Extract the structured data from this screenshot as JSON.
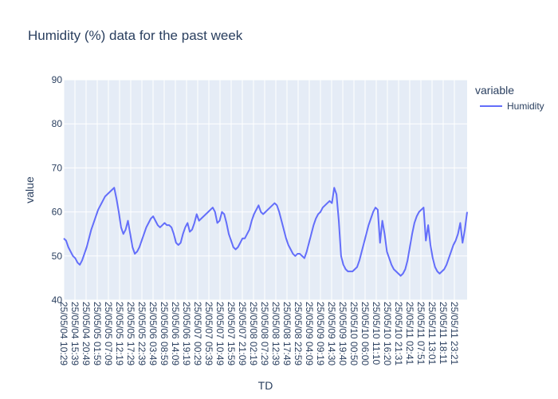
{
  "chart_data": {
    "type": "line",
    "title": "Humidity (%)  data for the past week",
    "xlabel": "TD",
    "ylabel": "value",
    "ylim": [
      40,
      90
    ],
    "yticks": [
      40,
      50,
      60,
      70,
      80,
      90
    ],
    "legend": {
      "title": "variable",
      "placement": "right",
      "entries": [
        "Humidity"
      ]
    },
    "grid": true,
    "colors": {
      "series": "#636efa",
      "plot_bg": "#e5ecf6",
      "grid": "#ffffff",
      "text": "#2a3f5f"
    },
    "x_ticks": [
      "25/05/04 10:29",
      "25/05/04 15:39",
      "25/05/04 20:49",
      "25/05/05 01:59",
      "25/05/05 07:09",
      "25/05/05 12:19",
      "25/05/05 17:29",
      "25/05/05 22:39",
      "25/05/06 03:49",
      "25/05/06 08:59",
      "25/05/06 14:09",
      "25/05/06 19:19",
      "25/05/07 00:29",
      "25/05/07 05:39",
      "25/05/07 10:49",
      "25/05/07 15:59",
      "25/05/07 21:09",
      "25/05/08 02:19",
      "25/05/08 07:29",
      "25/05/08 12:39",
      "25/05/08 17:49",
      "25/05/08 22:59",
      "25/05/09 04:09",
      "25/05/09 09:19",
      "25/05/09 14:30",
      "25/05/09 19:40",
      "25/05/10 00:50",
      "25/05/10 06:00",
      "25/05/10 11:10",
      "25/05/10 16:20",
      "25/05/10 21:31",
      "25/05/11 02:41",
      "25/05/11 07:51",
      "25/05/11 13:01",
      "25/05/11 18:11",
      "25/05/11 23:21"
    ],
    "series": [
      {
        "name": "Humidity",
        "x_range": [
          "25/05/04 10:29",
          "25/05/11 23:59"
        ],
        "values": [
          54,
          53.5,
          52,
          51,
          50,
          49.5,
          48.5,
          48,
          49,
          50.5,
          52,
          54,
          56,
          57.5,
          59,
          60.5,
          61.5,
          62.5,
          63.5,
          64,
          64.5,
          65,
          65.5,
          63,
          60,
          56.5,
          55,
          56,
          58,
          55,
          52,
          50.5,
          51,
          52,
          53.5,
          55,
          56.5,
          57.5,
          58.5,
          59,
          58,
          57,
          56.5,
          57,
          57.5,
          57,
          57,
          56.5,
          55,
          53,
          52.5,
          53,
          55,
          56.5,
          57.5,
          55.5,
          56,
          57.5,
          59.5,
          58,
          58.5,
          59,
          59.5,
          60,
          60.5,
          61,
          60,
          57.5,
          58,
          60,
          59.5,
          57.5,
          55,
          53.5,
          52,
          51.5,
          52,
          53,
          54,
          54,
          55,
          56,
          58,
          59.5,
          60.5,
          61.5,
          60,
          59.5,
          60,
          60.5,
          61,
          61.5,
          62,
          61.5,
          60,
          58,
          56,
          54,
          52.5,
          51.5,
          50.5,
          50,
          50.5,
          50.5,
          50,
          49.5,
          51,
          53,
          55,
          57,
          58.5,
          59.5,
          60,
          61,
          61.5,
          62,
          62.5,
          62,
          65.5,
          64,
          58,
          50,
          48,
          47,
          46.5,
          46.5,
          46.5,
          47,
          47.5,
          49,
          51,
          53,
          55,
          57,
          58.5,
          60,
          61,
          60.5,
          53,
          58,
          55,
          51,
          49.5,
          48,
          47,
          46.5,
          46,
          45.5,
          46,
          47,
          49,
          52,
          55,
          57.5,
          59,
          60,
          60.5,
          61,
          53.5,
          57,
          52.5,
          49.5,
          47.5,
          46.5,
          46,
          46.5,
          47,
          48,
          49.5,
          51,
          52.5,
          53.5,
          55,
          57.5,
          53,
          56,
          60
        ]
      }
    ]
  }
}
